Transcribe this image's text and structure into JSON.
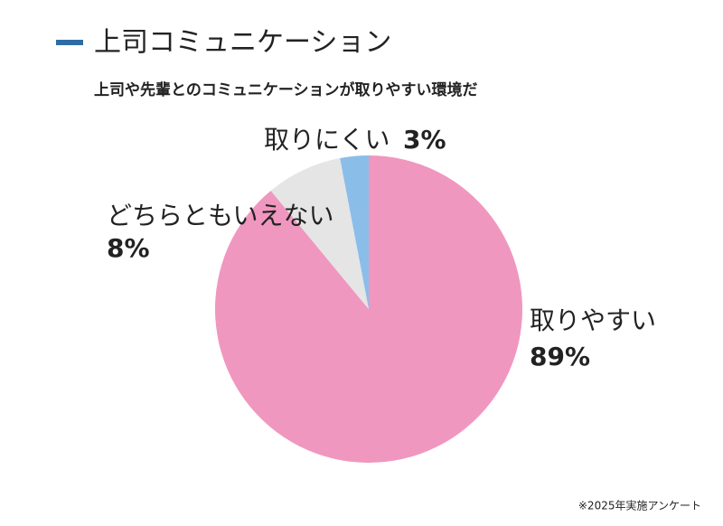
{
  "chart_data": {
    "type": "pie",
    "title": "上司コミュニケーション",
    "subtitle": "上司や先輩とのコミュニケーションが取りやすい環境だ",
    "categories": [
      "取りやすい",
      "どちらともいえない",
      "取りにくい"
    ],
    "values": [
      89,
      8,
      3
    ],
    "value_labels": [
      "89%",
      "8%",
      "3%"
    ],
    "colors": [
      "#f097bf",
      "#e5e5e5",
      "#8bbde9"
    ],
    "footnote": "※2025年実施アンケート"
  }
}
